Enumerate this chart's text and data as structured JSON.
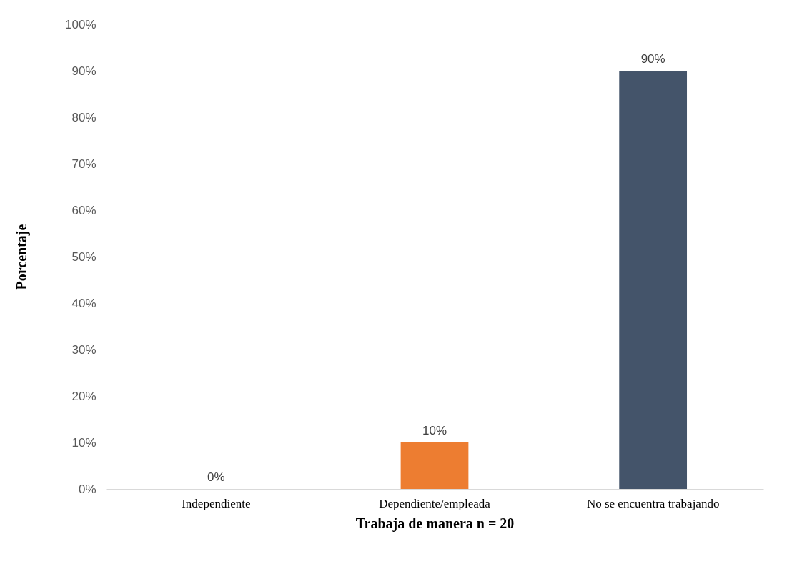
{
  "chart_data": {
    "type": "bar",
    "xlabel": "Trabaja de manera     n = 20",
    "ylabel": "Porcentaje",
    "categories": [
      "Independiente",
      "Dependiente/empleada",
      "No se encuentra trabajando"
    ],
    "values": [
      0,
      10,
      90
    ],
    "colors": [
      "#4472c4",
      "#ed7d31",
      "#44546a"
    ],
    "value_labels": [
      "0%",
      "10%",
      "90%"
    ],
    "ylim": [
      0,
      100
    ],
    "yticks": [
      {
        "value": 0,
        "label": "0%"
      },
      {
        "value": 10,
        "label": "10%"
      },
      {
        "value": 20,
        "label": "20%"
      },
      {
        "value": 30,
        "label": "30%"
      },
      {
        "value": 40,
        "label": "40%"
      },
      {
        "value": 50,
        "label": "50%"
      },
      {
        "value": 60,
        "label": "60%"
      },
      {
        "value": 70,
        "label": "70%"
      },
      {
        "value": 80,
        "label": "80%"
      },
      {
        "value": 90,
        "label": "90%"
      },
      {
        "value": 100,
        "label": "100%"
      }
    ],
    "grid": false
  }
}
